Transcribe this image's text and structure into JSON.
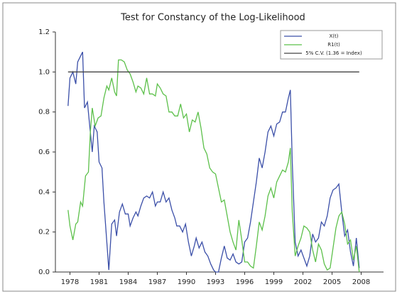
{
  "chart_data": {
    "type": "line",
    "title": "Test for Constancy of the Log-Likelihood",
    "xlim": [
      1976.5,
      2010.3
    ],
    "ylim": [
      0,
      1.2
    ],
    "xticks": [
      1978,
      1981,
      1984,
      1987,
      1990,
      1993,
      1996,
      1999,
      2002,
      2005,
      2008
    ],
    "yticks": [
      {
        "value": 0,
        "label": "0.0"
      },
      {
        "value": 0.2,
        "label": "0.2"
      },
      {
        "value": 0.4,
        "label": "0.4"
      },
      {
        "value": 0.6,
        "label": "0.6"
      },
      {
        "value": 0.8,
        "label": "0.8"
      },
      {
        "value": 1.0,
        "label": "1.0"
      },
      {
        "value": 1.2,
        "label": "1.2"
      }
    ],
    "legend": "upper right",
    "series": [
      {
        "name": "X(t)",
        "color": "#3b4fa8",
        "x": [
          1977.8,
          1978.0,
          1978.3,
          1978.6,
          1978.8,
          1979.1,
          1979.3,
          1979.5,
          1979.8,
          1980.0,
          1980.3,
          1980.5,
          1980.8,
          1981.0,
          1981.3,
          1981.5,
          1981.8,
          1982.0,
          1982.3,
          1982.6,
          1982.8,
          1983.1,
          1983.4,
          1983.7,
          1984.0,
          1984.2,
          1984.5,
          1984.8,
          1985.0,
          1985.3,
          1985.6,
          1985.9,
          1986.2,
          1986.5,
          1986.8,
          1987.0,
          1987.3,
          1987.6,
          1987.9,
          1988.2,
          1988.5,
          1988.8,
          1989.0,
          1989.3,
          1989.6,
          1989.9,
          1990.2,
          1990.5,
          1990.8,
          1991.0,
          1991.3,
          1991.6,
          1991.9,
          1992.2,
          1992.5,
          1992.8,
          1993.0,
          1993.3,
          1993.6,
          1993.9,
          1994.2,
          1994.5,
          1994.8,
          1995.1,
          1995.4,
          1995.7,
          1996.0,
          1996.3,
          1996.6,
          1996.9,
          1997.2,
          1997.5,
          1997.8,
          1998.1,
          1998.4,
          1998.7,
          1999.0,
          1999.3,
          1999.6,
          1999.9,
          2000.2,
          2000.5,
          2000.7,
          2000.9,
          2001.2,
          2001.5,
          2001.8,
          2002.1,
          2002.4,
          2002.7,
          2003.0,
          2003.3,
          2003.6,
          2003.9,
          2004.2,
          2004.5,
          2004.8,
          2005.1,
          2005.4,
          2005.7,
          2006.0,
          2006.3,
          2006.6,
          2006.9,
          2007.2,
          2007.5,
          2007.8
        ],
        "values": [
          0.83,
          0.97,
          1.0,
          0.94,
          1.05,
          1.08,
          1.1,
          0.82,
          0.85,
          0.75,
          0.6,
          0.73,
          0.7,
          0.55,
          0.52,
          0.35,
          0.15,
          0.01,
          0.24,
          0.26,
          0.18,
          0.3,
          0.34,
          0.29,
          0.29,
          0.23,
          0.27,
          0.3,
          0.28,
          0.33,
          0.37,
          0.38,
          0.37,
          0.4,
          0.33,
          0.35,
          0.35,
          0.4,
          0.35,
          0.37,
          0.31,
          0.27,
          0.23,
          0.23,
          0.2,
          0.24,
          0.15,
          0.08,
          0.13,
          0.17,
          0.12,
          0.15,
          0.1,
          0.08,
          0.04,
          0.01,
          0.0,
          0.0,
          0.07,
          0.13,
          0.07,
          0.06,
          0.09,
          0.05,
          0.04,
          0.05,
          0.15,
          0.17,
          0.25,
          0.35,
          0.45,
          0.57,
          0.52,
          0.6,
          0.7,
          0.73,
          0.68,
          0.74,
          0.75,
          0.8,
          0.8,
          0.87,
          0.91,
          0.55,
          0.15,
          0.08,
          0.11,
          0.07,
          0.03,
          0.08,
          0.19,
          0.15,
          0.17,
          0.25,
          0.23,
          0.28,
          0.37,
          0.41,
          0.42,
          0.44,
          0.3,
          0.18,
          0.21,
          0.1,
          0.03,
          0.17,
          0.02
        ]
      },
      {
        "name": "R1(t)",
        "color": "#5cc04a",
        "x": [
          1977.8,
          1978.0,
          1978.3,
          1978.6,
          1978.8,
          1979.1,
          1979.3,
          1979.6,
          1979.9,
          1980.1,
          1980.3,
          1980.6,
          1980.9,
          1981.2,
          1981.5,
          1981.8,
          1982.0,
          1982.3,
          1982.6,
          1982.8,
          1983.0,
          1983.3,
          1983.6,
          1983.9,
          1984.2,
          1984.5,
          1984.8,
          1985.0,
          1985.3,
          1985.6,
          1985.9,
          1986.2,
          1986.5,
          1986.8,
          1987.0,
          1987.3,
          1987.6,
          1987.9,
          1988.2,
          1988.5,
          1988.8,
          1989.1,
          1989.4,
          1989.7,
          1990.0,
          1990.3,
          1990.6,
          1990.9,
          1991.2,
          1991.5,
          1991.8,
          1992.1,
          1992.4,
          1992.7,
          1993.0,
          1993.3,
          1993.6,
          1993.9,
          1994.2,
          1994.5,
          1994.8,
          1995.1,
          1995.4,
          1995.7,
          1996.0,
          1996.3,
          1996.6,
          1996.9,
          1997.2,
          1997.5,
          1997.8,
          1998.1,
          1998.4,
          1998.7,
          1999.0,
          1999.3,
          1999.6,
          1999.9,
          2000.2,
          2000.5,
          2000.7,
          2000.9,
          2001.2,
          2001.5,
          2001.8,
          2002.1,
          2002.4,
          2002.7,
          2003.0,
          2003.3,
          2003.6,
          2003.9,
          2004.2,
          2004.5,
          2004.8,
          2005.1,
          2005.4,
          2005.7,
          2006.0,
          2006.3,
          2006.6,
          2006.9,
          2007.2,
          2007.5,
          2007.8
        ],
        "values": [
          0.31,
          0.23,
          0.16,
          0.24,
          0.25,
          0.35,
          0.33,
          0.48,
          0.5,
          0.7,
          0.82,
          0.73,
          0.77,
          0.78,
          0.87,
          0.93,
          0.91,
          0.97,
          0.9,
          0.88,
          1.06,
          1.06,
          1.05,
          1.01,
          0.99,
          0.95,
          0.9,
          0.93,
          0.92,
          0.89,
          0.97,
          0.89,
          0.89,
          0.88,
          0.94,
          0.92,
          0.89,
          0.88,
          0.8,
          0.8,
          0.78,
          0.78,
          0.84,
          0.77,
          0.79,
          0.7,
          0.76,
          0.75,
          0.8,
          0.72,
          0.62,
          0.59,
          0.52,
          0.5,
          0.49,
          0.42,
          0.35,
          0.36,
          0.28,
          0.2,
          0.15,
          0.11,
          0.26,
          0.16,
          0.05,
          0.05,
          0.03,
          0.02,
          0.13,
          0.25,
          0.21,
          0.28,
          0.38,
          0.42,
          0.37,
          0.45,
          0.48,
          0.51,
          0.5,
          0.55,
          0.62,
          0.3,
          0.08,
          0.13,
          0.17,
          0.23,
          0.22,
          0.2,
          0.11,
          0.05,
          0.14,
          0.11,
          0.04,
          0.01,
          0.02,
          0.12,
          0.22,
          0.28,
          0.3,
          0.24,
          0.14,
          0.16,
          0.06,
          0.13,
          0.0
        ]
      },
      {
        "name": "5% C.V. (1.36 = Index)",
        "color": "#444444",
        "x": [
          1977.8,
          2007.8
        ],
        "values": [
          1.0,
          1.0
        ]
      }
    ]
  }
}
